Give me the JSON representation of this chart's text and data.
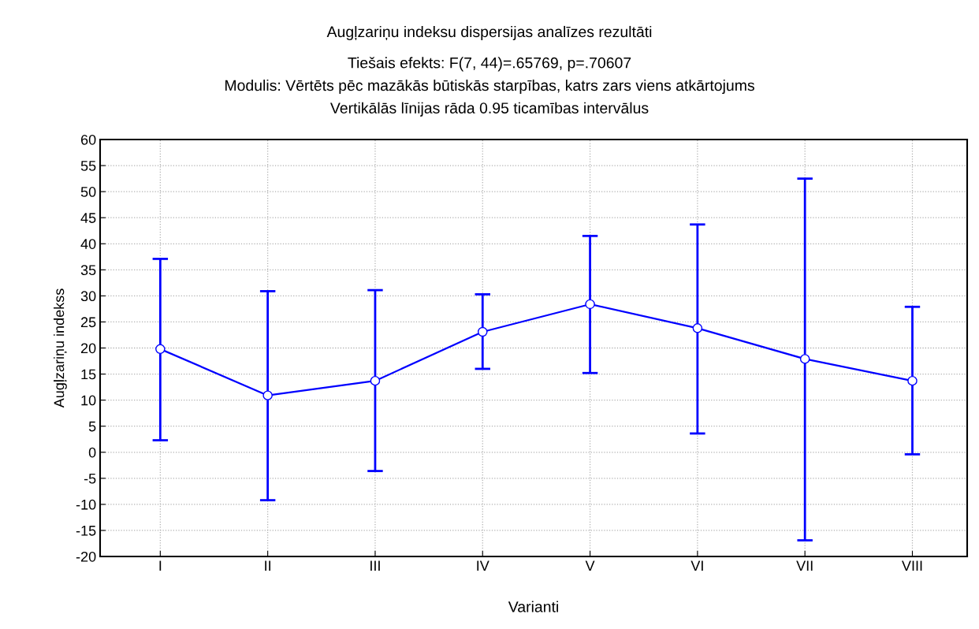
{
  "chart_data": {
    "type": "line",
    "title": "Augļzariņu indeksu dispersijas analīzes rezultāti",
    "subtitle": "Tiešais efekts: F(7, 44)=.65769, p=.70607\nModulis: Vērtēts pēc mazākās būtiskās starpības, katrs zars viens atkārtojums\nVertikālās līnijas rāda 0.95 ticamības intervālus",
    "xlabel": "Varianti",
    "ylabel": "Augļzariņu indekss",
    "categories": [
      "I",
      "II",
      "III",
      "IV",
      "V",
      "VI",
      "VII",
      "VIII"
    ],
    "series": [
      {
        "color": "#0000ff",
        "values": [
          19.8,
          10.9,
          13.7,
          23.1,
          28.4,
          23.8,
          17.9,
          13.7
        ],
        "errors": [
          [
            2.3,
            37.1
          ],
          [
            -9.2,
            30.9
          ],
          [
            -3.6,
            31.1
          ],
          [
            16.0,
            30.3
          ],
          [
            15.2,
            41.5
          ],
          [
            3.6,
            43.7
          ],
          [
            -16.9,
            52.5
          ],
          [
            -0.4,
            27.9
          ]
        ]
      }
    ],
    "ylim": [
      -20,
      60
    ],
    "yticks": [
      -20,
      -15,
      -10,
      -5,
      0,
      5,
      10,
      15,
      20,
      25,
      30,
      35,
      40,
      45,
      50,
      55,
      60
    ],
    "grid": true,
    "marker": "circle",
    "line_style": "solid",
    "legend": false
  }
}
